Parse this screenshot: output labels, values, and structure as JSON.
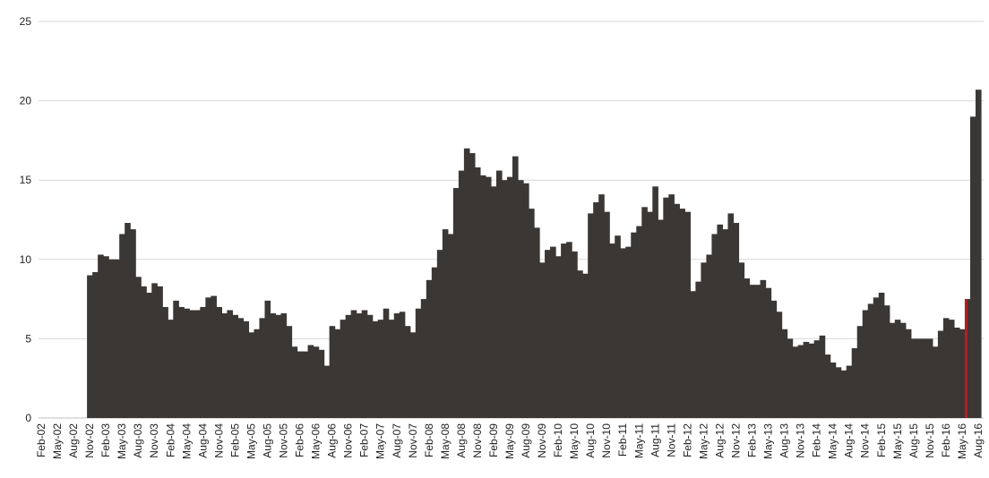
{
  "chart_data": {
    "type": "area",
    "title": "",
    "xlabel": "",
    "ylabel": "",
    "ylim": [
      0,
      25
    ],
    "y_ticks": [
      "0",
      "5",
      "10",
      "15",
      "20",
      "25"
    ],
    "grid": true,
    "legend": "none",
    "x_ticks": [
      "Feb-02",
      "May-02",
      "Aug-02",
      "Nov-02",
      "Feb-03",
      "May-03",
      "Aug-03",
      "Nov-03",
      "Feb-04",
      "May-04",
      "Aug-04",
      "Nov-04",
      "Feb-05",
      "May-05",
      "Aug-05",
      "Nov-05",
      "Feb-06",
      "May-06",
      "Aug-06",
      "Nov-06",
      "Feb-07",
      "May-07",
      "Aug-07",
      "Nov-07",
      "Feb-08",
      "May-08",
      "Aug-08",
      "Nov-08",
      "Feb-09",
      "May-09",
      "Aug-09",
      "Nov-09",
      "Feb-10",
      "May-10",
      "Aug-10",
      "Nov-10",
      "Feb-11",
      "May-11",
      "Aug-11",
      "Nov-11",
      "Feb-12",
      "May-12",
      "Aug-12",
      "Nov-12",
      "Feb-13",
      "May-13",
      "Aug-13",
      "Nov-13",
      "Feb-14",
      "May-14",
      "Aug-14",
      "Nov-14",
      "Feb-15",
      "May-15",
      "Aug-15",
      "Nov-15",
      "Feb-16",
      "May-16",
      "Aug-16"
    ],
    "colors": {
      "fill": "#3b3735",
      "highlight": "#b51e1e"
    },
    "series": [
      {
        "values": [
          {
            "x": "Nov-02",
            "y": 9.0
          },
          {
            "x": "Dec-02",
            "y": 9.2
          },
          {
            "x": "Jan-03",
            "y": 10.3
          },
          {
            "x": "Feb-03",
            "y": 10.2
          },
          {
            "x": "Mar-03",
            "y": 10.0
          },
          {
            "x": "Apr-03",
            "y": 10.0
          },
          {
            "x": "May-03",
            "y": 11.6
          },
          {
            "x": "Jun-03",
            "y": 12.3
          },
          {
            "x": "Jul-03",
            "y": 11.9
          },
          {
            "x": "Aug-03",
            "y": 8.9
          },
          {
            "x": "Sep-03",
            "y": 8.3
          },
          {
            "x": "Oct-03",
            "y": 7.9
          },
          {
            "x": "Nov-03",
            "y": 8.5
          },
          {
            "x": "Dec-03",
            "y": 8.3
          },
          {
            "x": "Jan-04",
            "y": 7.0
          },
          {
            "x": "Feb-04",
            "y": 6.2
          },
          {
            "x": "Mar-04",
            "y": 7.4
          },
          {
            "x": "Apr-04",
            "y": 7.0
          },
          {
            "x": "May-04",
            "y": 6.9
          },
          {
            "x": "Jun-04",
            "y": 6.8
          },
          {
            "x": "Jul-04",
            "y": 6.8
          },
          {
            "x": "Aug-04",
            "y": 7.0
          },
          {
            "x": "Sep-04",
            "y": 7.6
          },
          {
            "x": "Oct-04",
            "y": 7.7
          },
          {
            "x": "Nov-04",
            "y": 7.0
          },
          {
            "x": "Dec-04",
            "y": 6.6
          },
          {
            "x": "Jan-05",
            "y": 6.8
          },
          {
            "x": "Feb-05",
            "y": 6.5
          },
          {
            "x": "Mar-05",
            "y": 6.3
          },
          {
            "x": "Apr-05",
            "y": 6.1
          },
          {
            "x": "May-05",
            "y": 5.4
          },
          {
            "x": "Jun-05",
            "y": 5.6
          },
          {
            "x": "Jul-05",
            "y": 6.3
          },
          {
            "x": "Aug-05",
            "y": 7.4
          },
          {
            "x": "Sep-05",
            "y": 6.6
          },
          {
            "x": "Oct-05",
            "y": 6.5
          },
          {
            "x": "Nov-05",
            "y": 6.6
          },
          {
            "x": "Dec-05",
            "y": 5.8
          },
          {
            "x": "Jan-06",
            "y": 4.5
          },
          {
            "x": "Feb-06",
            "y": 4.2
          },
          {
            "x": "Mar-06",
            "y": 4.2
          },
          {
            "x": "Apr-06",
            "y": 4.6
          },
          {
            "x": "May-06",
            "y": 4.5
          },
          {
            "x": "Jun-06",
            "y": 4.3
          },
          {
            "x": "Jul-06",
            "y": 3.3
          },
          {
            "x": "Aug-06",
            "y": 5.8
          },
          {
            "x": "Sep-06",
            "y": 5.6
          },
          {
            "x": "Oct-06",
            "y": 6.2
          },
          {
            "x": "Nov-06",
            "y": 6.5
          },
          {
            "x": "Dec-06",
            "y": 6.8
          },
          {
            "x": "Jan-07",
            "y": 6.6
          },
          {
            "x": "Feb-07",
            "y": 6.8
          },
          {
            "x": "Mar-07",
            "y": 6.5
          },
          {
            "x": "Apr-07",
            "y": 6.1
          },
          {
            "x": "May-07",
            "y": 6.2
          },
          {
            "x": "Jun-07",
            "y": 6.9
          },
          {
            "x": "Jul-07",
            "y": 6.2
          },
          {
            "x": "Aug-07",
            "y": 6.6
          },
          {
            "x": "Sep-07",
            "y": 6.7
          },
          {
            "x": "Oct-07",
            "y": 5.8
          },
          {
            "x": "Nov-07",
            "y": 5.4
          },
          {
            "x": "Dec-07",
            "y": 6.9
          },
          {
            "x": "Jan-08",
            "y": 7.5
          },
          {
            "x": "Feb-08",
            "y": 8.7
          },
          {
            "x": "Mar-08",
            "y": 9.5
          },
          {
            "x": "Apr-08",
            "y": 10.6
          },
          {
            "x": "May-08",
            "y": 11.9
          },
          {
            "x": "Jun-08",
            "y": 11.6
          },
          {
            "x": "Jul-08",
            "y": 14.5
          },
          {
            "x": "Aug-08",
            "y": 15.6
          },
          {
            "x": "Sep-08",
            "y": 17.0
          },
          {
            "x": "Oct-08",
            "y": 16.7
          },
          {
            "x": "Nov-08",
            "y": 15.8
          },
          {
            "x": "Dec-08",
            "y": 15.3
          },
          {
            "x": "Jan-09",
            "y": 15.2
          },
          {
            "x": "Feb-09",
            "y": 14.6
          },
          {
            "x": "Mar-09",
            "y": 15.6
          },
          {
            "x": "Apr-09",
            "y": 15.0
          },
          {
            "x": "May-09",
            "y": 15.2
          },
          {
            "x": "Jun-09",
            "y": 16.5
          },
          {
            "x": "Jul-09",
            "y": 15.0
          },
          {
            "x": "Aug-09",
            "y": 14.8
          },
          {
            "x": "Sep-09",
            "y": 13.2
          },
          {
            "x": "Oct-09",
            "y": 12.0
          },
          {
            "x": "Nov-09",
            "y": 9.8
          },
          {
            "x": "Dec-09",
            "y": 10.6
          },
          {
            "x": "Jan-10",
            "y": 10.8
          },
          {
            "x": "Feb-10",
            "y": 10.2
          },
          {
            "x": "Mar-10",
            "y": 11.0
          },
          {
            "x": "Apr-10",
            "y": 11.1
          },
          {
            "x": "May-10",
            "y": 10.5
          },
          {
            "x": "Jun-10",
            "y": 9.3
          },
          {
            "x": "Jul-10",
            "y": 9.1
          },
          {
            "x": "Aug-10",
            "y": 12.9
          },
          {
            "x": "Sep-10",
            "y": 13.6
          },
          {
            "x": "Oct-10",
            "y": 14.1
          },
          {
            "x": "Nov-10",
            "y": 13.0
          },
          {
            "x": "Dec-10",
            "y": 11.0
          },
          {
            "x": "Jan-11",
            "y": 11.5
          },
          {
            "x": "Feb-11",
            "y": 10.7
          },
          {
            "x": "Mar-11",
            "y": 10.8
          },
          {
            "x": "Apr-11",
            "y": 11.7
          },
          {
            "x": "May-11",
            "y": 12.1
          },
          {
            "x": "Jun-11",
            "y": 13.3
          },
          {
            "x": "Jul-11",
            "y": 13.0
          },
          {
            "x": "Aug-11",
            "y": 14.6
          },
          {
            "x": "Sep-11",
            "y": 12.5
          },
          {
            "x": "Oct-11",
            "y": 13.9
          },
          {
            "x": "Nov-11",
            "y": 14.1
          },
          {
            "x": "Dec-11",
            "y": 13.5
          },
          {
            "x": "Jan-12",
            "y": 13.2
          },
          {
            "x": "Feb-12",
            "y": 13.0
          },
          {
            "x": "Mar-12",
            "y": 8.0
          },
          {
            "x": "Apr-12",
            "y": 8.6
          },
          {
            "x": "May-12",
            "y": 9.8
          },
          {
            "x": "Jun-12",
            "y": 10.3
          },
          {
            "x": "Jul-12",
            "y": 11.6
          },
          {
            "x": "Aug-12",
            "y": 12.2
          },
          {
            "x": "Sep-12",
            "y": 11.9
          },
          {
            "x": "Oct-12",
            "y": 12.9
          },
          {
            "x": "Nov-12",
            "y": 12.3
          },
          {
            "x": "Dec-12",
            "y": 9.8
          },
          {
            "x": "Jan-13",
            "y": 8.8
          },
          {
            "x": "Feb-13",
            "y": 8.4
          },
          {
            "x": "Mar-13",
            "y": 8.4
          },
          {
            "x": "Apr-13",
            "y": 8.7
          },
          {
            "x": "May-13",
            "y": 8.2
          },
          {
            "x": "Jun-13",
            "y": 7.4
          },
          {
            "x": "Jul-13",
            "y": 6.7
          },
          {
            "x": "Aug-13",
            "y": 5.6
          },
          {
            "x": "Sep-13",
            "y": 5.0
          },
          {
            "x": "Oct-13",
            "y": 4.5
          },
          {
            "x": "Nov-13",
            "y": 4.6
          },
          {
            "x": "Dec-13",
            "y": 4.8
          },
          {
            "x": "Jan-14",
            "y": 4.7
          },
          {
            "x": "Feb-14",
            "y": 4.9
          },
          {
            "x": "Mar-14",
            "y": 5.2
          },
          {
            "x": "Apr-14",
            "y": 4.0
          },
          {
            "x": "May-14",
            "y": 3.5
          },
          {
            "x": "Jun-14",
            "y": 3.2
          },
          {
            "x": "Jul-14",
            "y": 3.0
          },
          {
            "x": "Aug-14",
            "y": 3.3
          },
          {
            "x": "Sep-14",
            "y": 4.4
          },
          {
            "x": "Oct-14",
            "y": 5.8
          },
          {
            "x": "Nov-14",
            "y": 6.8
          },
          {
            "x": "Dec-14",
            "y": 7.2
          },
          {
            "x": "Jan-15",
            "y": 7.6
          },
          {
            "x": "Feb-15",
            "y": 7.9
          },
          {
            "x": "Mar-15",
            "y": 7.1
          },
          {
            "x": "Apr-15",
            "y": 6.0
          },
          {
            "x": "May-15",
            "y": 6.2
          },
          {
            "x": "Jun-15",
            "y": 6.0
          },
          {
            "x": "Jul-15",
            "y": 5.6
          },
          {
            "x": "Aug-15",
            "y": 5.0
          },
          {
            "x": "Sep-15",
            "y": 5.0
          },
          {
            "x": "Oct-15",
            "y": 5.0
          },
          {
            "x": "Nov-15",
            "y": 5.0
          },
          {
            "x": "Dec-15",
            "y": 4.5
          },
          {
            "x": "Jan-16",
            "y": 5.5
          },
          {
            "x": "Feb-16",
            "y": 6.3
          },
          {
            "x": "Mar-16",
            "y": 6.2
          },
          {
            "x": "Apr-16",
            "y": 5.7
          },
          {
            "x": "May-16",
            "y": 5.6
          },
          {
            "x": "Jun-16",
            "y": 7.5
          },
          {
            "x": "Jul-16",
            "y": 19.0
          },
          {
            "x": "Aug-16",
            "y": 20.7
          }
        ]
      }
    ],
    "highlight": {
      "x": "Jun-16",
      "y": 7.5
    }
  }
}
